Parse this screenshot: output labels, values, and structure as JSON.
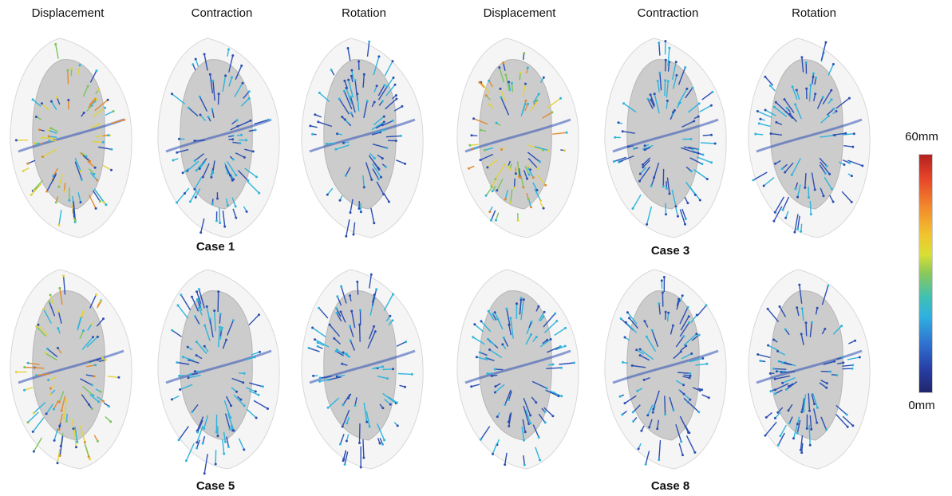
{
  "columns": [
    "Displacement",
    "Contraction",
    "Rotation",
    "Displacement",
    "Contraction",
    "Rotation"
  ],
  "cases": [
    "Case 1",
    "Case 3",
    "Case 5",
    "Case 8"
  ],
  "colorbar": {
    "max_label": "60mm",
    "min_label": "0mm"
  },
  "colors": {
    "blue": "#2b4fb3",
    "cyan": "#2db4dc",
    "green": "#7ac45a",
    "yellow": "#e2d23a",
    "orange": "#e48a2e",
    "red": "#cf3b27",
    "mesh": "#cfcfcf"
  }
}
